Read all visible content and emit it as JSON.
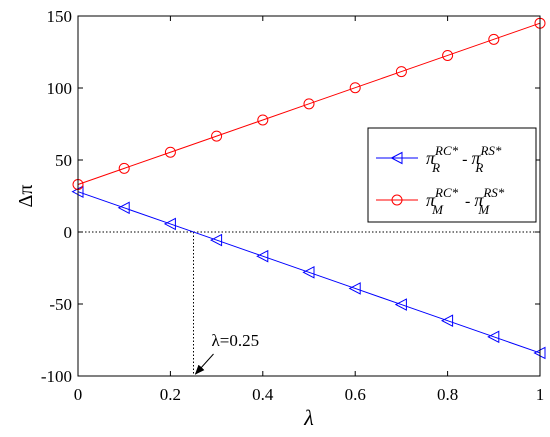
{
  "chart_data": {
    "type": "line",
    "title": "",
    "xlabel": "λ",
    "ylabel": "Δπ",
    "xlim": [
      0,
      1
    ],
    "ylim": [
      -100,
      150
    ],
    "grid": false,
    "legend_position": "right",
    "x": [
      0,
      0.1,
      0.2,
      0.3,
      0.4,
      0.5,
      0.6,
      0.7,
      0.8,
      0.9,
      1.0
    ],
    "x_tick_labels": [
      "0",
      "0.2",
      "0.4",
      "0.6",
      "0.8",
      "1"
    ],
    "y_tick_labels": [
      "-100",
      "-50",
      "0",
      "50",
      "100",
      "150"
    ],
    "series": [
      {
        "legend": {
          "base_left": "π",
          "sub_left": "R",
          "sup_left": "RC*",
          "dash": " - ",
          "base_right": "π",
          "sub_right": "R",
          "sup_right": "RS*"
        },
        "color": "#0000ff",
        "marker": "triangle-left",
        "values": [
          28,
          16.8,
          5.6,
          -5.6,
          -16.8,
          -28,
          -39.2,
          -50.4,
          -61.6,
          -72.8,
          -84
        ]
      },
      {
        "legend": {
          "base_left": "π",
          "sub_left": "M",
          "sup_left": "RC*",
          "dash": " - ",
          "base_right": "π",
          "sub_right": "M",
          "sup_right": "RS*"
        },
        "color": "#ff0000",
        "marker": "circle",
        "values": [
          33,
          44.2,
          55.4,
          66.6,
          77.8,
          89,
          100.2,
          111.4,
          122.6,
          133.8,
          145
        ]
      }
    ],
    "reference_lines": {
      "horizontal_y": 0,
      "vertical_x": 0.25
    },
    "annotation": {
      "text": "λ=0.25",
      "x": 0.25,
      "y": -100
    }
  }
}
